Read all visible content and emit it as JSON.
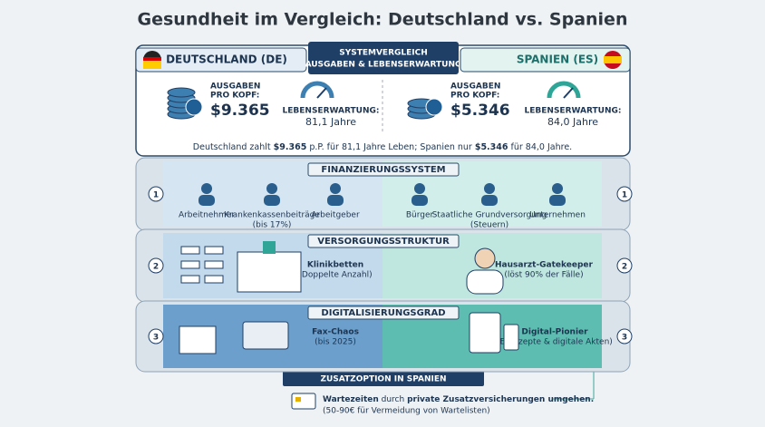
{
  "title": "Gesundheit im Vergleich: Deutschland vs. Spanien",
  "header": {
    "germany": "DEUTSCHLAND (DE)",
    "center": [
      "SYSTEMVERGLEICH",
      "AUSGABEN & LEBENSERWARTUNG"
    ],
    "spain": "SPANIEN (ES)"
  },
  "countries": [
    {
      "spending_label": [
        "AUSGABEN",
        "PRO KOPF:"
      ],
      "spending": "$9.365",
      "life_label": "LEBENSERWARTUNG:",
      "life": "81,1 Jahre"
    },
    {
      "spending_label": [
        "AUSGABEN",
        "PRO KOPF:"
      ],
      "spending": "$5.346",
      "life_label": "LEBENSERWARTUNG:",
      "life": "84,0 Jahre"
    }
  ],
  "summary": [
    "Deutschland zahlt ",
    "$9.365",
    " p.P. für 81,1 Jahre Leben; Spanien nur ",
    "$5.346",
    " für 84,0 Jahre."
  ],
  "sections": [
    {
      "number": 1,
      "title": "FINANZIERUNGSSYSTEM",
      "germany": [
        {
          "label": "Arbeitnehmer"
        },
        {
          "label": "Krankenkassenbeiträge",
          "sub": "(bis 17%)"
        },
        {
          "label": "Arbeitgeber"
        }
      ],
      "spain": [
        {
          "label": "Bürger"
        },
        {
          "label": "Staatliche Grundversorgung",
          "sub": "(Steuern)"
        },
        {
          "label": "Unternehmen"
        }
      ]
    },
    {
      "number": 2,
      "title": "VERSORGUNGSSTRUKTUR",
      "germany": [
        {
          "label": "Klinikbetten",
          "sub": "(Doppelte Anzahl)"
        }
      ],
      "spain": [
        {
          "label": "Hausarzt-Gatekeeper",
          "sub": "(löst 90% der Fälle)"
        }
      ]
    },
    {
      "number": 3,
      "title": "DIGITALISIERUNGSGRAD",
      "germany": [
        {
          "label": "Fax-Chaos",
          "sub": "(bis 2025)"
        }
      ],
      "spain": [
        {
          "label": "Digital-Pionier",
          "sub": "(E-Rezepte & digitale Akten)"
        }
      ]
    }
  ],
  "extra": {
    "title": "ZUSATZOPTION IN SPANIEN",
    "text": [
      "Wartezeiten",
      " durch ",
      "private Zusatzversicherungen umgehen."
    ],
    "note": "(50-90€ für Vermeidung von Wartelisten)"
  }
}
